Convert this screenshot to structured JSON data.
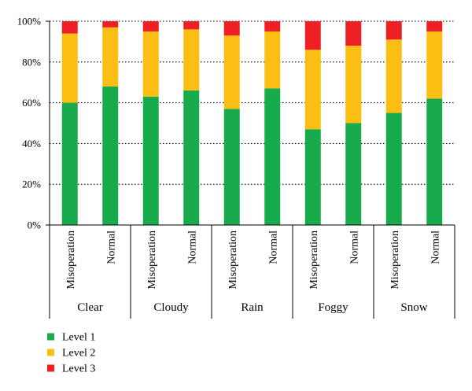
{
  "chart_data": {
    "type": "bar",
    "stacked": true,
    "y_unit": "%",
    "ylim": [
      0,
      100
    ],
    "y_ticks": [
      "0%",
      "20%",
      "40%",
      "60%",
      "80%",
      "100%"
    ],
    "grid": "horizontal dotted",
    "legend_position": "bottom-left",
    "groups": [
      "Clear",
      "Cloudy",
      "Rain",
      "Foggy",
      "Snow"
    ],
    "categories": [
      "Misoperation",
      "Normal",
      "Misoperation",
      "Normal",
      "Misoperation",
      "Normal",
      "Misoperation",
      "Normal",
      "Misoperation",
      "Normal"
    ],
    "series": [
      {
        "name": "Level 1",
        "color": "#18ab4b",
        "values": [
          60,
          68,
          63,
          66,
          57,
          67,
          47,
          50,
          55,
          62
        ]
      },
      {
        "name": "Level 2",
        "color": "#fcbe12",
        "values": [
          34,
          29,
          32,
          30,
          36,
          28,
          39,
          38,
          36,
          33
        ]
      },
      {
        "name": "Level 3",
        "color": "#ee1f25",
        "values": [
          6,
          3,
          5,
          4,
          7,
          5,
          14,
          12,
          9,
          5
        ]
      }
    ]
  }
}
